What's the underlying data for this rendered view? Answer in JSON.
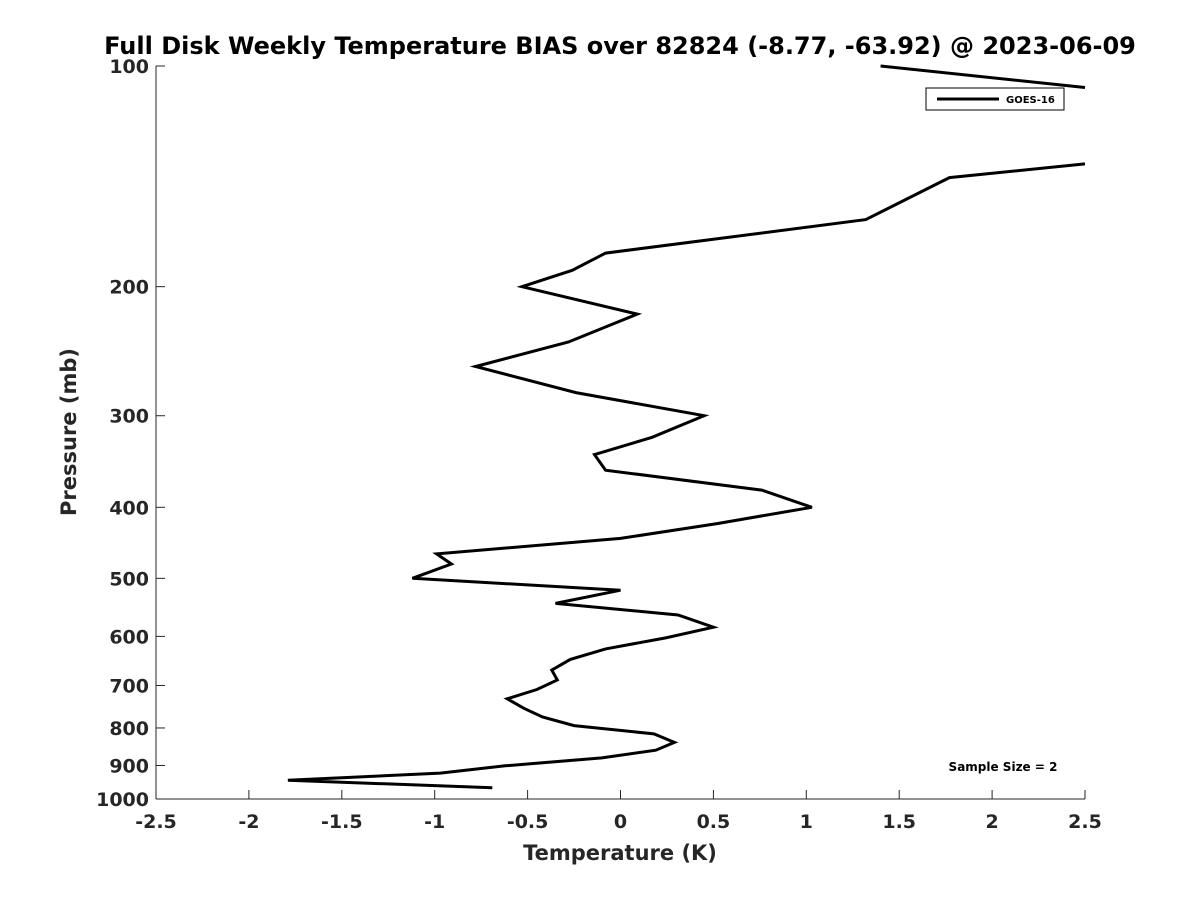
{
  "chart_data": {
    "type": "line",
    "title": "Full Disk Weekly Temperature BIAS over 82824 (-8.77, -63.92) @ 2023-06-09",
    "xlabel": "Temperature (K)",
    "ylabel": "Pressure (mb)",
    "xlim": [
      -2.5,
      2.5
    ],
    "ylim": [
      1000,
      100
    ],
    "yscale": "log",
    "y_reversed": true,
    "grid": false,
    "x_ticks": [
      -2.5,
      -2,
      -1.5,
      -1,
      -0.5,
      0,
      0.5,
      1,
      1.5,
      2,
      2.5
    ],
    "x_tick_labels": [
      "-2.5",
      "-2",
      "-1.5",
      "-1",
      "-0.5",
      "0",
      "0.5",
      "1",
      "1.5",
      "2",
      "2.5"
    ],
    "y_ticks": [
      100,
      200,
      300,
      400,
      500,
      600,
      700,
      800,
      900,
      1000
    ],
    "y_tick_labels": [
      "100",
      "200",
      "300",
      "400",
      "500",
      "600",
      "700",
      "800",
      "900",
      "1000"
    ],
    "legend_position": "top-right",
    "series": [
      {
        "name": "GOES-16",
        "color": "#000000",
        "segments": [
          [
            [
              1.4,
              100
            ],
            [
              2.5,
              107
            ]
          ],
          [
            [
              2.5,
              136
            ],
            [
              1.77,
              142
            ],
            [
              1.32,
              162
            ],
            [
              -0.08,
              180
            ],
            [
              -0.26,
              190
            ],
            [
              -0.53,
              200
            ],
            [
              0.09,
              218
            ],
            [
              -0.28,
              238
            ],
            [
              -0.78,
              257
            ],
            [
              -0.24,
              279
            ],
            [
              0.45,
              300
            ],
            [
              0.17,
              321
            ],
            [
              -0.14,
              339
            ],
            [
              -0.08,
              356
            ],
            [
              0.76,
              379
            ],
            [
              1.03,
              400
            ],
            [
              0.52,
              421
            ],
            [
              0,
              441
            ],
            [
              -0.99,
              463
            ],
            [
              -0.91,
              478
            ],
            [
              -1.12,
              500
            ],
            [
              0,
              519
            ],
            [
              -0.35,
              541
            ],
            [
              0.31,
              561
            ],
            [
              0.5,
              583
            ],
            [
              0.24,
              603
            ],
            [
              -0.08,
              624
            ],
            [
              -0.27,
              645
            ],
            [
              -0.37,
              667
            ],
            [
              -0.34,
              688
            ],
            [
              -0.45,
              709
            ],
            [
              -0.61,
              730
            ],
            [
              -0.52,
              752
            ],
            [
              -0.42,
              773
            ],
            [
              -0.25,
              794
            ],
            [
              0.18,
              815
            ],
            [
              0.29,
              837
            ],
            [
              0.19,
              858
            ],
            [
              -0.1,
              879
            ],
            [
              -0.62,
              901
            ],
            [
              -0.97,
              922
            ],
            [
              -1.79,
              943
            ],
            [
              -0.69,
              965
            ]
          ]
        ]
      }
    ],
    "annotations": [
      {
        "text": "Sample Size = 2",
        "position": "bottom-right"
      }
    ]
  }
}
